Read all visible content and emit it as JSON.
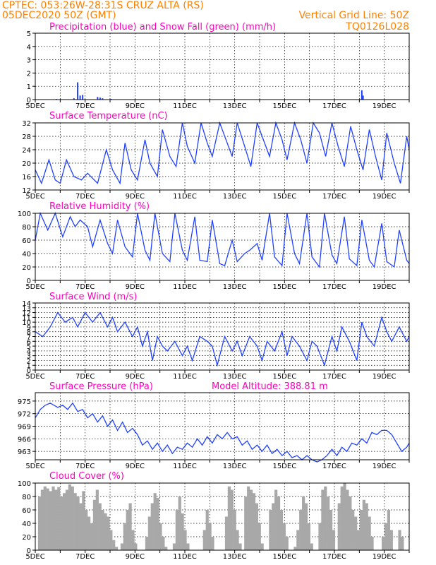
{
  "header": {
    "line1_left": "CPTEC:   053:26W-28:31S   CRUZ ALTA (RS)",
    "line2_left": "05DEC2020 50Z (GMT)",
    "line1_right": "Vertical Grid Line: 50Z",
    "line2_right": "TQ0126L028"
  },
  "colors": {
    "header": "#ff8000",
    "title": "#ff00c0",
    "series": "#2040ff",
    "snow": "#33cc33",
    "cloud": "#a8a8a8"
  },
  "x_labels": [
    "5DEC",
    "7DEC",
    "9DEC",
    "11DEC",
    "13DEC",
    "15DEC",
    "17DEC",
    "19DEC"
  ],
  "chart_data": [
    {
      "type": "bar",
      "title": "Precipitation (blue) and Snow Fall (green) (mm/h)",
      "ylim": [
        0,
        5
      ],
      "yticks": [
        0,
        1,
        2,
        3,
        4,
        5
      ],
      "x_range": [
        0,
        15
      ],
      "series": [
        {
          "name": "Precipitation",
          "x": [
            0.85,
            1.55,
            1.7,
            1.8,
            1.9,
            2.5,
            2.6,
            2.7,
            3.05,
            13.1,
            13.15
          ],
          "values": [
            0.05,
            0.1,
            1.3,
            0.3,
            0.35,
            0.2,
            0.15,
            0.1,
            0.05,
            0.7,
            0.3
          ]
        },
        {
          "name": "Snow Fall",
          "x": [],
          "values": []
        }
      ]
    },
    {
      "type": "line",
      "title": "Surface Temperature (nC)",
      "ylim": [
        12,
        32
      ],
      "yticks": [
        12,
        16,
        20,
        24,
        28,
        32
      ],
      "x": [
        0,
        0.25,
        0.55,
        0.8,
        1.0,
        1.25,
        1.55,
        1.85,
        2.1,
        2.5,
        2.85,
        3.1,
        3.4,
        3.6,
        3.85,
        4.1,
        4.4,
        4.6,
        4.9,
        5.1,
        5.4,
        5.65,
        5.9,
        6.1,
        6.4,
        6.65,
        6.9,
        7.1,
        7.4,
        7.65,
        7.9,
        8.1,
        8.4,
        8.65,
        8.9,
        9.1,
        9.4,
        9.65,
        9.9,
        10.1,
        10.4,
        10.65,
        10.9,
        11.15,
        11.4,
        11.65,
        11.9,
        12.15,
        12.4,
        12.65,
        12.9,
        13.15,
        13.4,
        13.65,
        13.9,
        14.1,
        14.4,
        14.65,
        14.9,
        15.0
      ],
      "values": [
        18,
        14,
        21,
        15,
        14,
        21,
        16,
        15,
        17,
        14,
        24,
        18,
        14,
        26,
        18,
        15,
        27,
        20,
        16,
        30,
        22,
        19,
        32,
        25,
        20,
        32,
        26,
        22,
        32,
        27,
        22,
        32,
        25,
        19,
        32,
        28,
        22,
        32,
        27,
        21,
        32,
        27,
        20,
        32,
        29,
        22,
        32,
        25,
        19,
        31,
        24,
        18,
        30,
        22,
        15,
        29,
        20,
        14,
        28,
        24
      ]
    },
    {
      "type": "line",
      "title": "Relative Humidity (%)",
      "ylim": [
        0,
        100
      ],
      "yticks": [
        0,
        20,
        40,
        60,
        80,
        100
      ],
      "x": [
        0,
        0.2,
        0.5,
        0.8,
        1.1,
        1.4,
        1.6,
        1.8,
        2.1,
        2.3,
        2.6,
        2.9,
        3.1,
        3.3,
        3.6,
        3.9,
        4.1,
        4.4,
        4.6,
        4.8,
        5.1,
        5.4,
        5.6,
        5.9,
        6.1,
        6.4,
        6.6,
        6.9,
        7.1,
        7.4,
        7.6,
        7.9,
        8.1,
        8.4,
        8.6,
        8.9,
        9.1,
        9.4,
        9.6,
        9.9,
        10.1,
        10.4,
        10.6,
        10.9,
        11.1,
        11.4,
        11.6,
        11.9,
        12.1,
        12.4,
        12.6,
        12.9,
        13.1,
        13.4,
        13.6,
        13.9,
        14.1,
        14.4,
        14.6,
        14.9,
        15.0
      ],
      "values": [
        60,
        100,
        75,
        100,
        65,
        95,
        80,
        90,
        80,
        50,
        90,
        55,
        40,
        90,
        50,
        35,
        100,
        45,
        30,
        100,
        40,
        28,
        100,
        45,
        30,
        95,
        30,
        28,
        90,
        25,
        22,
        60,
        28,
        40,
        45,
        55,
        30,
        100,
        35,
        22,
        100,
        40,
        25,
        100,
        35,
        20,
        100,
        38,
        25,
        95,
        32,
        22,
        90,
        30,
        20,
        85,
        28,
        20,
        75,
        30,
        25
      ]
    },
    {
      "type": "line",
      "title": "Surface Wind (m/s)",
      "ylim": [
        0,
        14
      ],
      "yticks": [
        0,
        1,
        2,
        3,
        4,
        5,
        6,
        7,
        8,
        9,
        10,
        11,
        12,
        13,
        14
      ],
      "x": [
        0,
        0.3,
        0.6,
        0.9,
        1.2,
        1.5,
        1.7,
        2.0,
        2.3,
        2.6,
        2.9,
        3.1,
        3.3,
        3.6,
        3.9,
        4.1,
        4.3,
        4.5,
        4.7,
        4.9,
        5.1,
        5.3,
        5.6,
        5.9,
        6.1,
        6.3,
        6.6,
        6.9,
        7.1,
        7.3,
        7.6,
        7.9,
        8.1,
        8.3,
        8.6,
        8.9,
        9.1,
        9.3,
        9.6,
        9.9,
        10.1,
        10.3,
        10.6,
        10.9,
        11.1,
        11.3,
        11.6,
        11.9,
        12.1,
        12.3,
        12.6,
        12.9,
        13.1,
        13.3,
        13.6,
        13.9,
        14.1,
        14.3,
        14.6,
        14.9,
        15.0
      ],
      "values": [
        8,
        7,
        9,
        12,
        10,
        11,
        9,
        12,
        10,
        12,
        9,
        11,
        8,
        10,
        7,
        9,
        5,
        8,
        2,
        7,
        5,
        4,
        6,
        3,
        5,
        2,
        7,
        6,
        5,
        1,
        7,
        4,
        6,
        3,
        7,
        5,
        2,
        6,
        4,
        8,
        3,
        7,
        5,
        2,
        6,
        5,
        1,
        7,
        4,
        9,
        6,
        2,
        10,
        7,
        5,
        11,
        8,
        6,
        9,
        6,
        7
      ]
    },
    {
      "type": "line",
      "title": "Surface Pressure (hPa)",
      "annotation": "Model Altitude: 388.81 m",
      "ylim": [
        961,
        977
      ],
      "yticks": [
        963,
        966,
        969,
        972,
        975
      ],
      "x": [
        0,
        0.2,
        0.4,
        0.6,
        0.9,
        1.1,
        1.3,
        1.5,
        1.7,
        1.9,
        2.1,
        2.3,
        2.5,
        2.7,
        2.9,
        3.1,
        3.3,
        3.5,
        3.7,
        3.9,
        4.1,
        4.3,
        4.5,
        4.7,
        4.9,
        5.1,
        5.3,
        5.5,
        5.7,
        5.9,
        6.1,
        6.3,
        6.5,
        6.7,
        6.9,
        7.1,
        7.3,
        7.5,
        7.7,
        7.9,
        8.1,
        8.3,
        8.5,
        8.7,
        8.9,
        9.1,
        9.3,
        9.5,
        9.7,
        9.9,
        10.1,
        10.3,
        10.5,
        10.7,
        10.9,
        11.1,
        11.3,
        11.5,
        11.7,
        11.9,
        12.1,
        12.3,
        12.5,
        12.7,
        12.9,
        13.1,
        13.3,
        13.5,
        13.7,
        13.9,
        14.1,
        14.3,
        14.5,
        14.7,
        14.9,
        15.0
      ],
      "values": [
        971,
        973,
        974,
        974.5,
        973.5,
        974,
        973,
        974.5,
        972.5,
        973,
        971,
        972,
        970,
        971.5,
        969,
        970.5,
        968,
        970,
        967.5,
        968.5,
        967,
        964.5,
        965.5,
        963.5,
        965,
        963,
        964.5,
        962.5,
        964,
        963.5,
        965,
        964,
        966,
        964.5,
        966.5,
        965,
        967,
        966,
        967.5,
        966,
        966.5,
        964.5,
        965.5,
        963.5,
        964.5,
        963,
        964.5,
        962.5,
        963.5,
        962,
        963,
        961.5,
        962,
        961,
        962,
        961,
        960.5,
        961,
        962,
        963.5,
        962,
        964,
        963,
        965,
        964.5,
        966,
        965,
        967.5,
        967,
        968,
        968,
        967,
        965,
        963,
        964,
        965
      ]
    },
    {
      "type": "bar",
      "title": "Cloud Cover (%)",
      "ylim": [
        0,
        100
      ],
      "yticks": [
        0,
        20,
        40,
        60,
        80,
        100
      ],
      "x_range": [
        0,
        15
      ],
      "values": [
        0,
        80,
        90,
        95,
        92,
        88,
        95,
        90,
        94,
        80,
        85,
        90,
        98,
        95,
        85,
        80,
        70,
        88,
        60,
        50,
        40,
        75,
        90,
        70,
        60,
        55,
        50,
        30,
        15,
        5,
        0,
        10,
        40,
        60,
        70,
        30,
        10,
        0,
        0,
        0,
        20,
        50,
        70,
        85,
        78,
        40,
        20,
        5,
        0,
        0,
        10,
        60,
        80,
        55,
        30,
        10,
        0,
        0,
        0,
        0,
        0,
        30,
        60,
        40,
        20,
        0,
        0,
        0,
        0,
        50,
        95,
        90,
        60,
        30,
        10,
        0,
        80,
        95,
        90,
        85,
        70,
        40,
        10,
        0,
        0,
        60,
        70,
        90,
        80,
        60,
        40,
        20,
        0,
        0,
        5,
        30,
        60,
        80,
        70,
        40,
        10,
        0,
        0,
        40,
        90,
        95,
        80,
        60,
        30,
        0,
        70,
        95,
        100,
        90,
        80,
        60,
        50,
        30,
        60,
        75,
        70,
        50,
        20,
        0,
        0,
        0,
        20,
        40,
        60,
        30,
        0,
        0,
        30,
        20,
        0,
        0
      ]
    }
  ]
}
